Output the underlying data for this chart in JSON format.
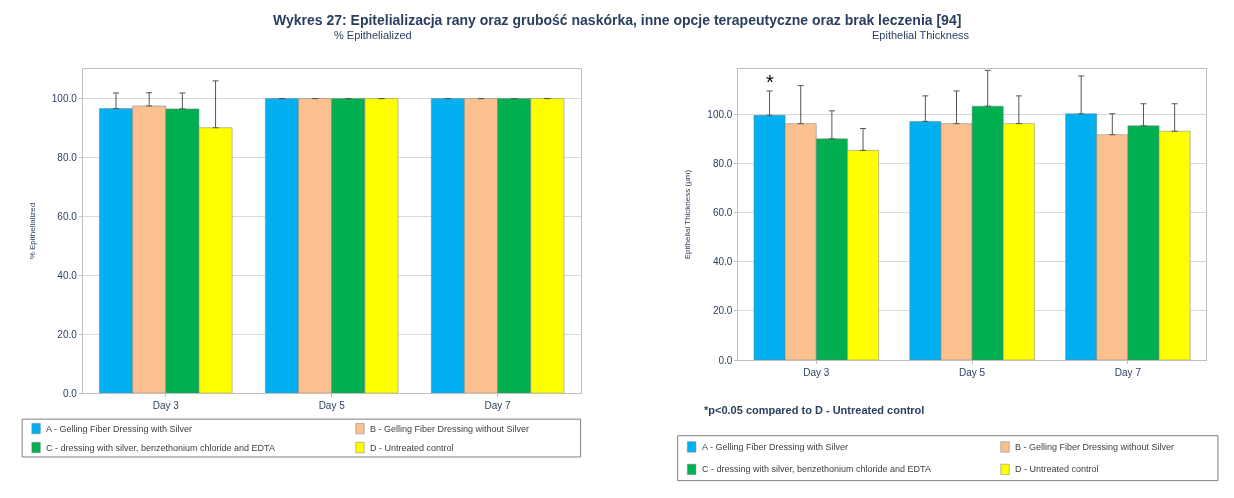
{
  "chart_data": [
    {
      "type": "bar",
      "title": "% Epithelialized",
      "ylabel": "% Epithelialized",
      "annotations": [
        "Wykres 27: Epitelializacja rany oraz grubość naskórka, inne opcje terapeutyczne oraz brak leczenia [94]"
      ],
      "categories": [
        "Day 3",
        "Day 5",
        "Day 7"
      ],
      "series": [
        {
          "name": "A - Gelling Fiber Dressing with Silver",
          "color": "#00b0f0",
          "values": [
            96.6,
            100,
            100
          ],
          "errors": [
            [
              96.6,
              101.9
            ],
            null,
            null
          ]
        },
        {
          "name": "B - Gelling Fiber Dressing without Silver",
          "color": "#fac090",
          "values": [
            97.5,
            100,
            100
          ],
          "errors": [
            [
              97.5,
              102
            ],
            null,
            null
          ]
        },
        {
          "name": "C - dressing with silver, benzethonium chloride and EDTA",
          "color": "#00b050",
          "values": [
            96.5,
            100,
            100
          ],
          "errors": [
            [
              96.5,
              101.9
            ],
            null,
            null
          ]
        },
        {
          "name": "D - Untreated control",
          "color": "#ffff00",
          "values": [
            90.1,
            100,
            100
          ],
          "errors": [
            [
              90.1,
              106
            ],
            null,
            null
          ]
        }
      ],
      "ylim": [
        0,
        110
      ],
      "yticks": [
        {
          "value": 0,
          "label": "0.0"
        },
        {
          "value": 20,
          "label": "20.0"
        },
        {
          "value": 40,
          "label": "40.0"
        },
        {
          "value": 60,
          "label": "60.0"
        },
        {
          "value": 80,
          "label": "80.0"
        },
        {
          "value": 100,
          "label": "100.0"
        }
      ],
      "grid": "y",
      "legend": "bottom"
    },
    {
      "type": "bar",
      "title": "Epithelial Thickness",
      "ylabel": "Epithelial Thickness (µm)",
      "annotations": [
        "*",
        "*p<0.05 compared to D - Untreated control"
      ],
      "categories": [
        "Day 3",
        "Day 5",
        "Day 7"
      ],
      "series": [
        {
          "name": "A - Gelling Fiber Dressing with Silver",
          "color": "#00b0f0",
          "values": [
            99.7,
            97.2,
            100.3
          ],
          "errors": [
            [
              99.7,
              109.6
            ],
            [
              97.2,
              107.6
            ],
            [
              100.3,
              115.7
            ]
          ]
        },
        {
          "name": "B - Gelling Fiber Dressing without Silver",
          "color": "#fac090",
          "values": [
            96.3,
            96.3,
            91.8
          ],
          "errors": [
            [
              96.3,
              111.8
            ],
            [
              96.3,
              109.6
            ],
            [
              91.8,
              100.3
            ]
          ]
        },
        {
          "name": "C - dressing with silver, benzethonium chloride and EDTA",
          "color": "#00b050",
          "values": [
            90.1,
            103.4,
            95.4
          ],
          "errors": [
            [
              90.1,
              101.5
            ],
            [
              103.4,
              118
            ],
            [
              95.4,
              104.4
            ]
          ]
        },
        {
          "name": "D - Untreated control",
          "color": "#ffff00",
          "values": [
            85.4,
            96.3,
            93.2
          ],
          "errors": [
            [
              85.4,
              94.3
            ],
            [
              96.3,
              107.6
            ],
            [
              93.2,
              104.4
            ]
          ]
        }
      ],
      "ylim": [
        0,
        118.5
      ],
      "yticks": [
        {
          "value": 0,
          "label": "0.0"
        },
        {
          "value": 20,
          "label": "20.0"
        },
        {
          "value": 40,
          "label": "40.0"
        },
        {
          "value": 60,
          "label": "60.0"
        },
        {
          "value": 80,
          "label": "80.0"
        },
        {
          "value": 100,
          "label": "100.0"
        }
      ],
      "grid": "y",
      "legend": "bottom"
    }
  ]
}
